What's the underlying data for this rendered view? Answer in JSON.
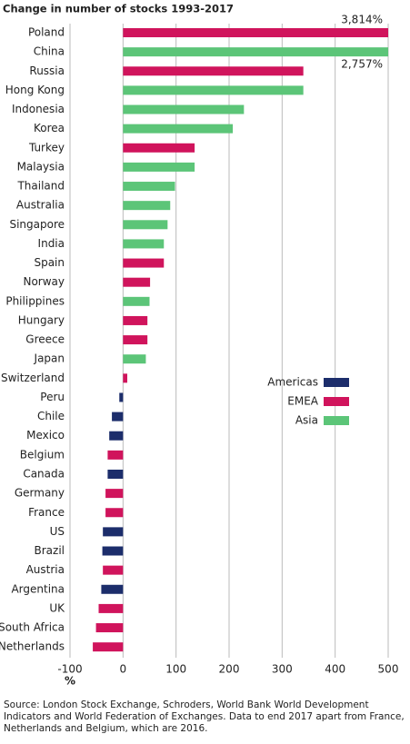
{
  "chart_data": {
    "type": "bar",
    "orientation": "horizontal",
    "title": "Change in number of stocks 1993-2017",
    "categories": [
      "Poland",
      "China",
      "Russia",
      "Hong Kong",
      "Indonesia",
      "Korea",
      "Turkey",
      "Malaysia",
      "Thailand",
      "Australia",
      "Singapore",
      "India",
      "Spain",
      "Norway",
      "Philippines",
      "Hungary",
      "Greece",
      "Japan",
      "Switzerland",
      "Peru",
      "Chile",
      "Mexico",
      "Belgium",
      "Canada",
      "Germany",
      "France",
      "US",
      "Brazil",
      "Austria",
      "Argentina",
      "UK",
      "South Africa",
      "Netherlands"
    ],
    "series": [
      {
        "name": "Americas",
        "color": "#1c2d6b",
        "values": [
          null,
          null,
          null,
          null,
          null,
          null,
          null,
          null,
          null,
          null,
          null,
          null,
          null,
          null,
          null,
          null,
          null,
          null,
          null,
          -7,
          -21,
          -26,
          null,
          -29,
          null,
          null,
          -38,
          -39,
          null,
          -41,
          null,
          null,
          null
        ]
      },
      {
        "name": "EMEA",
        "color": "#d0145c",
        "values": [
          3814,
          null,
          340,
          null,
          null,
          null,
          135,
          null,
          null,
          null,
          null,
          null,
          77,
          51,
          null,
          46,
          46,
          null,
          8,
          null,
          null,
          null,
          -29,
          null,
          -33,
          -33,
          null,
          null,
          -38,
          null,
          -46,
          -51,
          -57
        ],
        "value_labels": [
          "3,814%",
          null,
          null,
          null,
          null,
          null,
          null,
          null,
          null,
          null,
          null,
          null,
          null,
          null,
          null,
          null,
          null,
          null,
          null,
          null,
          null,
          null,
          null,
          null,
          null,
          null,
          null,
          null,
          null,
          null,
          null,
          null,
          null
        ]
      },
      {
        "name": "Asia",
        "color": "#5cc578",
        "values": [
          null,
          2757,
          null,
          340,
          228,
          207,
          null,
          135,
          98,
          89,
          84,
          77,
          null,
          null,
          50,
          null,
          null,
          43,
          null,
          null,
          null,
          null,
          null,
          null,
          null,
          null,
          null,
          null,
          null,
          null,
          null,
          null,
          null
        ],
        "value_labels": [
          null,
          "2,757%",
          null,
          null,
          null,
          null,
          null,
          null,
          null,
          null,
          null,
          null,
          null,
          null,
          null,
          null,
          null,
          null,
          null,
          null,
          null,
          null,
          null,
          null,
          null,
          null,
          null,
          null,
          null,
          null,
          null,
          null,
          null
        ]
      }
    ],
    "xlim": [
      -100,
      500
    ],
    "xticks": [
      -100,
      0,
      100,
      200,
      300,
      400,
      500
    ],
    "x_label": "%",
    "grid": true,
    "source": "Source: London Stock Exchange, Schroders, World Bank World Development Indicators and World Federation of Exchanges. Data to end 2017 apart from France, Netherlands and Belgium, which are 2016."
  }
}
